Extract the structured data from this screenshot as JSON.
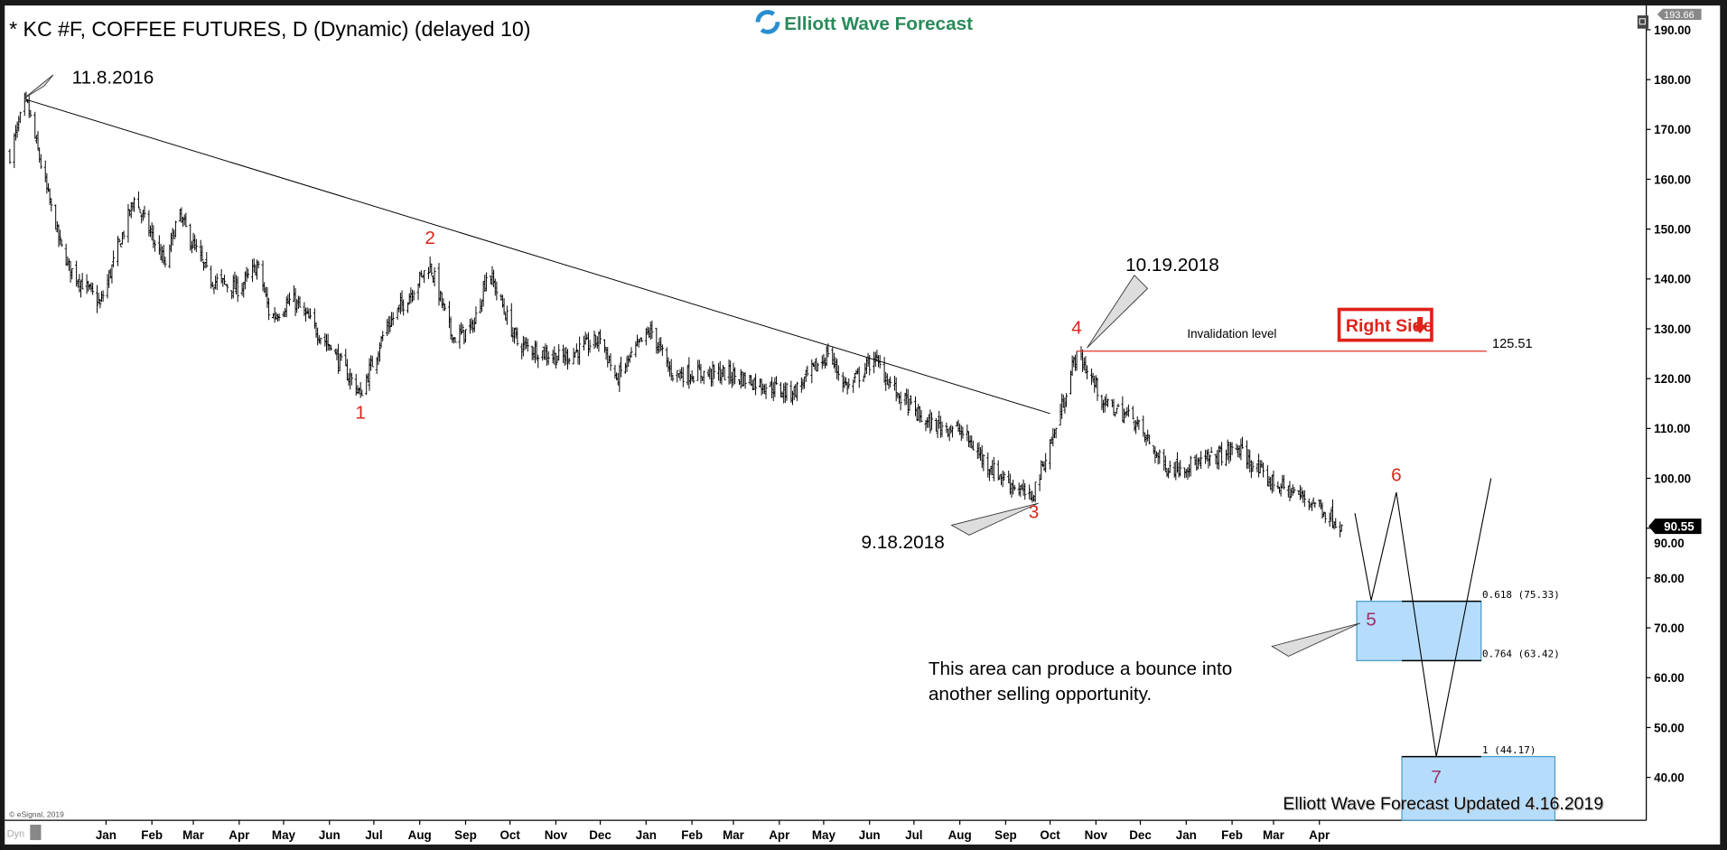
{
  "header": {
    "title": "* KC #F, COFFEE FUTURES, D (Dynamic) (delayed 10)",
    "logo_text": "Elliott Wave Forecast"
  },
  "footer": {
    "copyright": "© eSignal, 2019",
    "dyn_label": "Dyn",
    "updated": "Elliott Wave Forecast Updated 4.16.2019"
  },
  "colors": {
    "bars": "#000000",
    "wave_red": "#d9261c",
    "wave_purple": "#a0306a",
    "box_fill": "#b5dcfb",
    "box_stroke": "#4a9cc9",
    "invalidation": "#e0322a"
  },
  "chart_data": {
    "type": "ohlc-bar",
    "symbol": "KC #F",
    "yaxis": {
      "ticks": [
        "190.00",
        "180.00",
        "170.00",
        "160.00",
        "150.00",
        "140.00",
        "130.00",
        "120.00",
        "110.00",
        "100.00",
        "90.00",
        "80.00",
        "70.00",
        "60.00",
        "50.00",
        "40.00"
      ],
      "ylim": [
        32,
        193.66
      ],
      "top_label": "193.66",
      "last_price": "90.55"
    },
    "xaxis": {
      "months": [
        "Jan",
        "Feb",
        "Mar",
        "Apr",
        "May",
        "Jun",
        "Jul",
        "Aug",
        "Sep",
        "Oct",
        "Nov",
        "Dec",
        "Jan",
        "Feb",
        "Mar",
        "Apr",
        "May",
        "Jun",
        "Jul",
        "Aug",
        "Sep",
        "Oct",
        "Nov",
        "Dec",
        "Jan",
        "Feb",
        "Mar",
        "Apr"
      ],
      "start": "2017-01-01"
    },
    "price_path": [
      [
        "2016-10-28",
        165
      ],
      [
        "2016-11-08",
        176
      ],
      [
        "2016-11-28",
        150
      ],
      [
        "2016-12-05",
        143
      ],
      [
        "2016-12-28",
        135
      ],
      [
        "2017-01-20",
        156
      ],
      [
        "2017-02-10",
        143
      ],
      [
        "2017-02-19",
        153
      ],
      [
        "2017-03-12",
        140
      ],
      [
        "2017-04-01",
        138
      ],
      [
        "2017-04-14",
        143
      ],
      [
        "2017-04-22",
        132
      ],
      [
        "2017-05-07",
        136
      ],
      [
        "2017-06-02",
        126
      ],
      [
        "2017-06-22",
        117
      ],
      [
        "2017-07-09",
        130
      ],
      [
        "2017-08-08",
        143
      ],
      [
        "2017-08-23",
        128
      ],
      [
        "2017-09-06",
        130
      ],
      [
        "2017-09-16",
        142
      ],
      [
        "2017-10-06",
        127
      ],
      [
        "2017-11-05",
        124
      ],
      [
        "2017-12-01",
        128
      ],
      [
        "2017-12-12",
        120
      ],
      [
        "2018-01-04",
        130
      ],
      [
        "2018-01-18",
        121
      ],
      [
        "2018-02-25",
        121
      ],
      [
        "2018-04-10",
        117
      ],
      [
        "2018-05-04",
        125
      ],
      [
        "2018-05-17",
        118
      ],
      [
        "2018-06-04",
        124
      ],
      [
        "2018-06-20",
        117
      ],
      [
        "2018-07-09",
        111
      ],
      [
        "2018-07-31",
        110
      ],
      [
        "2018-08-22",
        102
      ],
      [
        "2018-09-18",
        96
      ],
      [
        "2018-10-05",
        110
      ],
      [
        "2018-10-19",
        125.5
      ],
      [
        "2018-11-07",
        115
      ],
      [
        "2018-11-26",
        112
      ],
      [
        "2018-12-18",
        102
      ],
      [
        "2019-01-10",
        103
      ],
      [
        "2019-02-05",
        106
      ],
      [
        "2019-02-23",
        100
      ],
      [
        "2019-03-29",
        95
      ],
      [
        "2019-04-16",
        90.55
      ]
    ],
    "trendline": [
      [
        "2016-11-08",
        176
      ],
      [
        "2018-10-01",
        113
      ]
    ],
    "projection": [
      [
        "2019-04-25",
        93
      ],
      [
        "2019-05-06",
        75.5
      ],
      [
        "2019-05-23",
        97.2
      ],
      [
        "2019-06-19",
        44.17
      ],
      [
        "2019-07-26",
        100
      ]
    ],
    "wave_labels": [
      {
        "label": "1",
        "date": "2017-06-22",
        "price": 112,
        "color": "red"
      },
      {
        "label": "2",
        "date": "2017-08-08",
        "price": 147,
        "color": "red"
      },
      {
        "label": "3",
        "date": "2018-09-20",
        "price": 92,
        "color": "red"
      },
      {
        "label": "4",
        "date": "2018-10-19",
        "price": 129,
        "color": "red"
      },
      {
        "label": "5",
        "date": "2019-05-06",
        "price": 70.5,
        "color": "purple"
      },
      {
        "label": "6",
        "date": "2019-05-23",
        "price": 99.5,
        "color": "red"
      },
      {
        "label": "7",
        "date": "2019-06-19",
        "price": 38.8,
        "color": "purple"
      }
    ],
    "callouts": [
      "11.8.2016",
      "10.19.2018",
      "9.18.2018"
    ],
    "invalidation": {
      "label": "Invalidation level",
      "value": "125.51",
      "price": 125.51
    },
    "fib_levels": [
      {
        "label": "0.618 (75.33)",
        "price": 75.33
      },
      {
        "label": "0.764 (63.42)",
        "price": 63.42
      },
      {
        "label": "1 (44.17)",
        "price": 44.17
      }
    ],
    "note": [
      "This area can produce a bounce into",
      "another selling opportunity."
    ],
    "badge": "Right Side"
  }
}
